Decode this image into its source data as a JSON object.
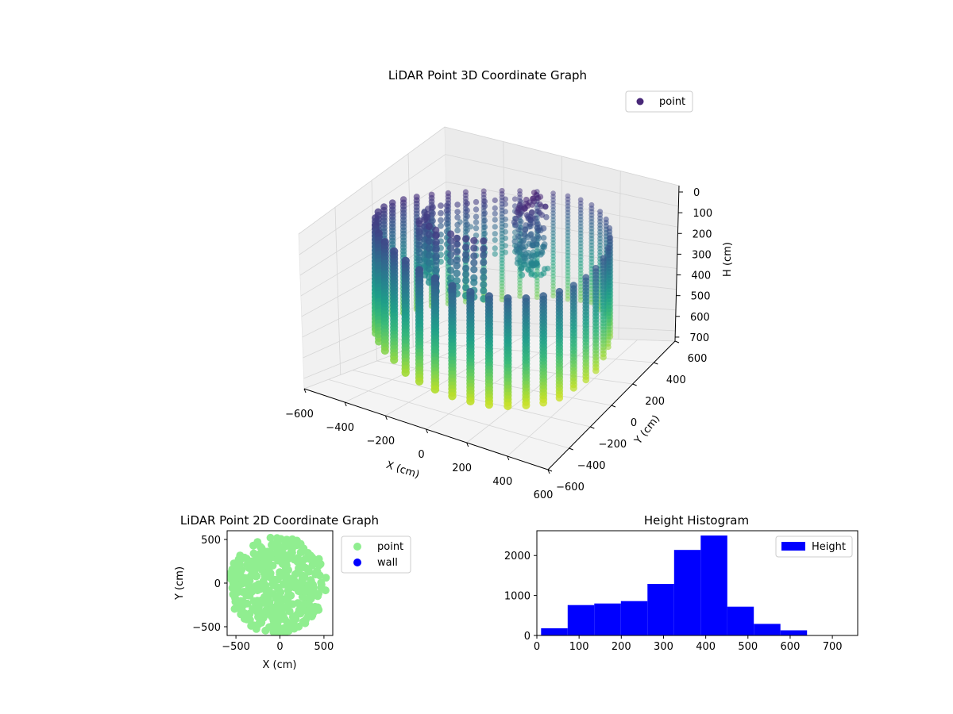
{
  "colors": {
    "point_3d": "#482878",
    "point_2d": "#90ee90",
    "wall": "#0000ff",
    "histogram": "#0000ff",
    "viridis": [
      "#440154",
      "#482878",
      "#3e4989",
      "#31688e",
      "#26828e",
      "#1f9e89",
      "#35b779",
      "#6ece58",
      "#b5de2b",
      "#fde725"
    ]
  },
  "chart_data": [
    {
      "type": "scatter",
      "projection": "3d",
      "title": "LiDAR Point 3D Coordinate Graph",
      "xlabel": "X (cm)",
      "ylabel": "Y (cm)",
      "zlabel": "H (cm)",
      "xlim": [
        -600,
        600
      ],
      "ylim": [
        -600,
        600
      ],
      "zlim": [
        0,
        750
      ],
      "z_inverted": true,
      "xticks": [
        "−600",
        "−400",
        "−200",
        "0",
        "200",
        "400",
        "600"
      ],
      "yticks": [
        "−600",
        "−400",
        "−200",
        "0",
        "200",
        "400",
        "600"
      ],
      "zticks": [
        "0",
        "100",
        "200",
        "300",
        "400",
        "500",
        "600",
        "700"
      ],
      "xtick_values": [
        -600,
        -400,
        -200,
        0,
        200,
        400,
        600
      ],
      "ytick_values": [
        -600,
        -400,
        -200,
        0,
        200,
        400,
        600
      ],
      "ztick_values": [
        0,
        100,
        200,
        300,
        400,
        500,
        600,
        700
      ],
      "colormap": "viridis",
      "wall_radius": 520,
      "legend": {
        "entries": [
          "point"
        ],
        "placement": "upper-right"
      },
      "grid": true
    },
    {
      "type": "scatter",
      "title": "LiDAR Point 2D Coordinate Graph",
      "xlabel": "X (cm)",
      "ylabel": "Y (cm)",
      "xlim": [
        -600,
        600
      ],
      "ylim": [
        -600,
        600
      ],
      "xticks": [
        "−500",
        "0",
        "500"
      ],
      "yticks": [
        "−500",
        "0",
        "500"
      ],
      "xtick_values": [
        -500,
        0,
        500
      ],
      "ytick_values": [
        -500,
        0,
        500
      ],
      "point_radius": 560,
      "legend": {
        "entries": [
          "point",
          "wall"
        ],
        "placement": "outside-right"
      },
      "grid": false
    },
    {
      "type": "bar",
      "title": "Height Histogram",
      "xlabel": "",
      "ylabel": "",
      "bin_edges": [
        10,
        73,
        136,
        199,
        262,
        325,
        388,
        451,
        514,
        577,
        640,
        703
      ],
      "values": [
        180,
        760,
        800,
        860,
        1290,
        2140,
        2500,
        720,
        290,
        130,
        0
      ],
      "xlim": [
        0,
        760
      ],
      "ylim": [
        0,
        2620
      ],
      "xticks": [
        "0",
        "100",
        "200",
        "300",
        "400",
        "500",
        "600",
        "700"
      ],
      "yticks": [
        "0",
        "1000",
        "2000"
      ],
      "xtick_values": [
        0,
        100,
        200,
        300,
        400,
        500,
        600,
        700
      ],
      "ytick_values": [
        0,
        1000,
        2000
      ],
      "legend": {
        "entries": [
          "Height"
        ],
        "placement": "upper-right"
      },
      "grid": false
    }
  ]
}
